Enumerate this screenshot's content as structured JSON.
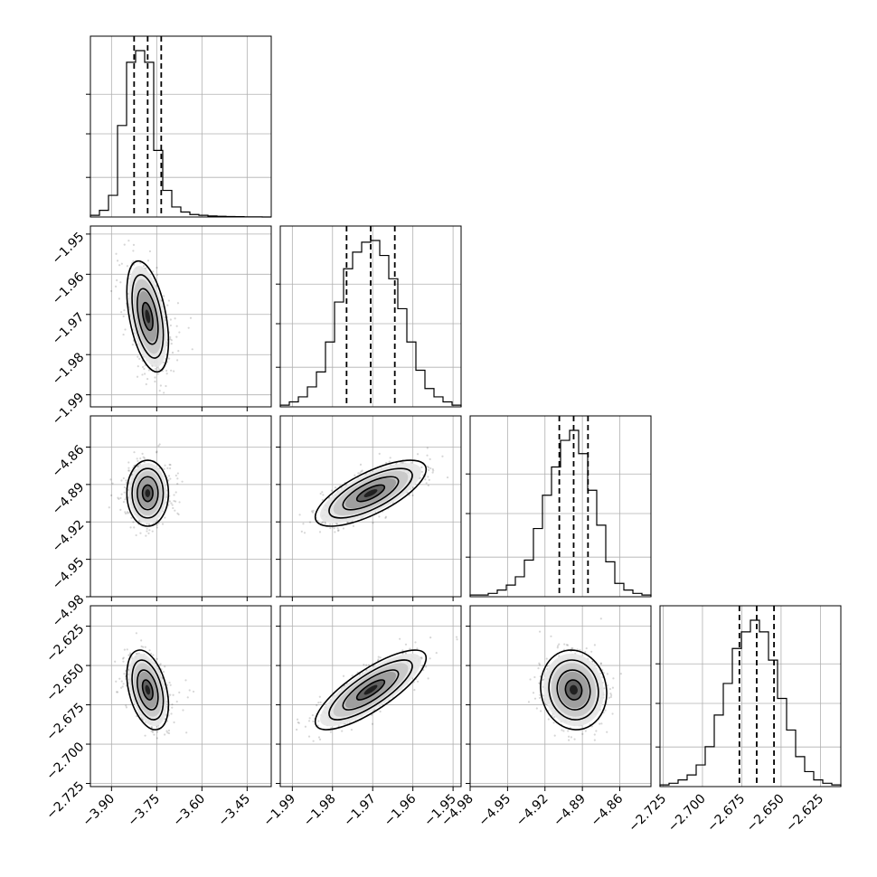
{
  "chart_data": {
    "type": "corner",
    "title": "",
    "parameters": [
      {
        "index": 0,
        "range": [
          -3.97,
          -3.37
        ],
        "ticks": [
          -3.9,
          -3.75,
          -3.6,
          -3.45
        ],
        "tick_labels": [
          "−3.90",
          "−3.75",
          "−3.60",
          "−3.45"
        ],
        "median": -3.78,
        "q16": -3.825,
        "q84": -3.735
      },
      {
        "index": 1,
        "range": [
          -1.993,
          -1.948
        ],
        "ticks": [
          -1.99,
          -1.98,
          -1.97,
          -1.96,
          -1.95
        ],
        "tick_labels": [
          "−1.99",
          "−1.98",
          "−1.97",
          "−1.96",
          "−1.95"
        ],
        "median": -1.9705,
        "q16": -1.9765,
        "q84": -1.9645
      },
      {
        "index": 2,
        "range": [
          -4.98,
          -4.835
        ],
        "ticks": [
          -4.98,
          -4.95,
          -4.92,
          -4.89,
          -4.86
        ],
        "tick_labels": [
          "−4.98",
          "−4.95",
          "−4.92",
          "−4.89",
          "−4.86"
        ],
        "median": -4.897,
        "q16": -4.9085,
        "q84": -4.8855
      },
      {
        "index": 3,
        "range": [
          -2.727,
          -2.612
        ],
        "ticks": [
          -2.725,
          -2.7,
          -2.675,
          -2.65,
          -2.625
        ],
        "tick_labels": [
          "−2.725",
          "−2.700",
          "−2.675",
          "−2.650",
          "−2.625"
        ],
        "median": -2.6655,
        "q16": -2.6765,
        "q84": -2.6545
      }
    ],
    "histograms": [
      [
        0.01,
        0.04,
        0.13,
        0.55,
        0.93,
        1.0,
        0.93,
        0.4,
        0.16,
        0.06,
        0.03,
        0.015,
        0.01,
        0.006,
        0.004,
        0.003,
        0.002,
        0.001,
        0.001,
        0.0
      ],
      [
        0.01,
        0.03,
        0.06,
        0.12,
        0.21,
        0.39,
        0.63,
        0.83,
        0.93,
        0.99,
        1.0,
        0.91,
        0.77,
        0.59,
        0.39,
        0.22,
        0.11,
        0.06,
        0.03,
        0.01
      ],
      [
        0.01,
        0.01,
        0.02,
        0.04,
        0.07,
        0.12,
        0.22,
        0.41,
        0.61,
        0.78,
        0.94,
        1.0,
        0.86,
        0.64,
        0.43,
        0.21,
        0.08,
        0.04,
        0.02,
        0.01
      ],
      [
        0.01,
        0.02,
        0.04,
        0.07,
        0.13,
        0.24,
        0.43,
        0.62,
        0.83,
        0.93,
        1.0,
        0.93,
        0.76,
        0.53,
        0.34,
        0.18,
        0.09,
        0.04,
        0.02,
        0.01
      ]
    ],
    "pairs": [
      {
        "x": 0,
        "y": 1,
        "mean": [
          -3.78,
          -1.9705
        ],
        "sd": [
          0.03,
          0.006
        ],
        "corr": -0.45
      },
      {
        "x": 0,
        "y": 2,
        "mean": [
          -3.78,
          -4.897
        ],
        "sd": [
          0.03,
          0.0115
        ],
        "corr": 0.0
      },
      {
        "x": 1,
        "y": 2,
        "mean": [
          -1.9705,
          -4.897
        ],
        "sd": [
          0.006,
          0.0115
        ],
        "corr": 0.72
      },
      {
        "x": 0,
        "y": 3,
        "mean": [
          -3.78,
          -2.6655
        ],
        "sd": [
          0.03,
          0.011
        ],
        "corr": -0.38
      },
      {
        "x": 1,
        "y": 3,
        "mean": [
          -1.9705,
          -2.6655
        ],
        "sd": [
          0.006,
          0.011
        ],
        "corr": 0.8
      },
      {
        "x": 2,
        "y": 3,
        "mean": [
          -4.897,
          -2.6655
        ],
        "sd": [
          0.0115,
          0.011
        ],
        "corr": -0.08
      }
    ],
    "contour_levels_sigma": [
      0.5,
      1.0,
      1.5,
      2.0
    ],
    "grid": true,
    "legend": "none",
    "xlabel": "",
    "ylabel": ""
  }
}
